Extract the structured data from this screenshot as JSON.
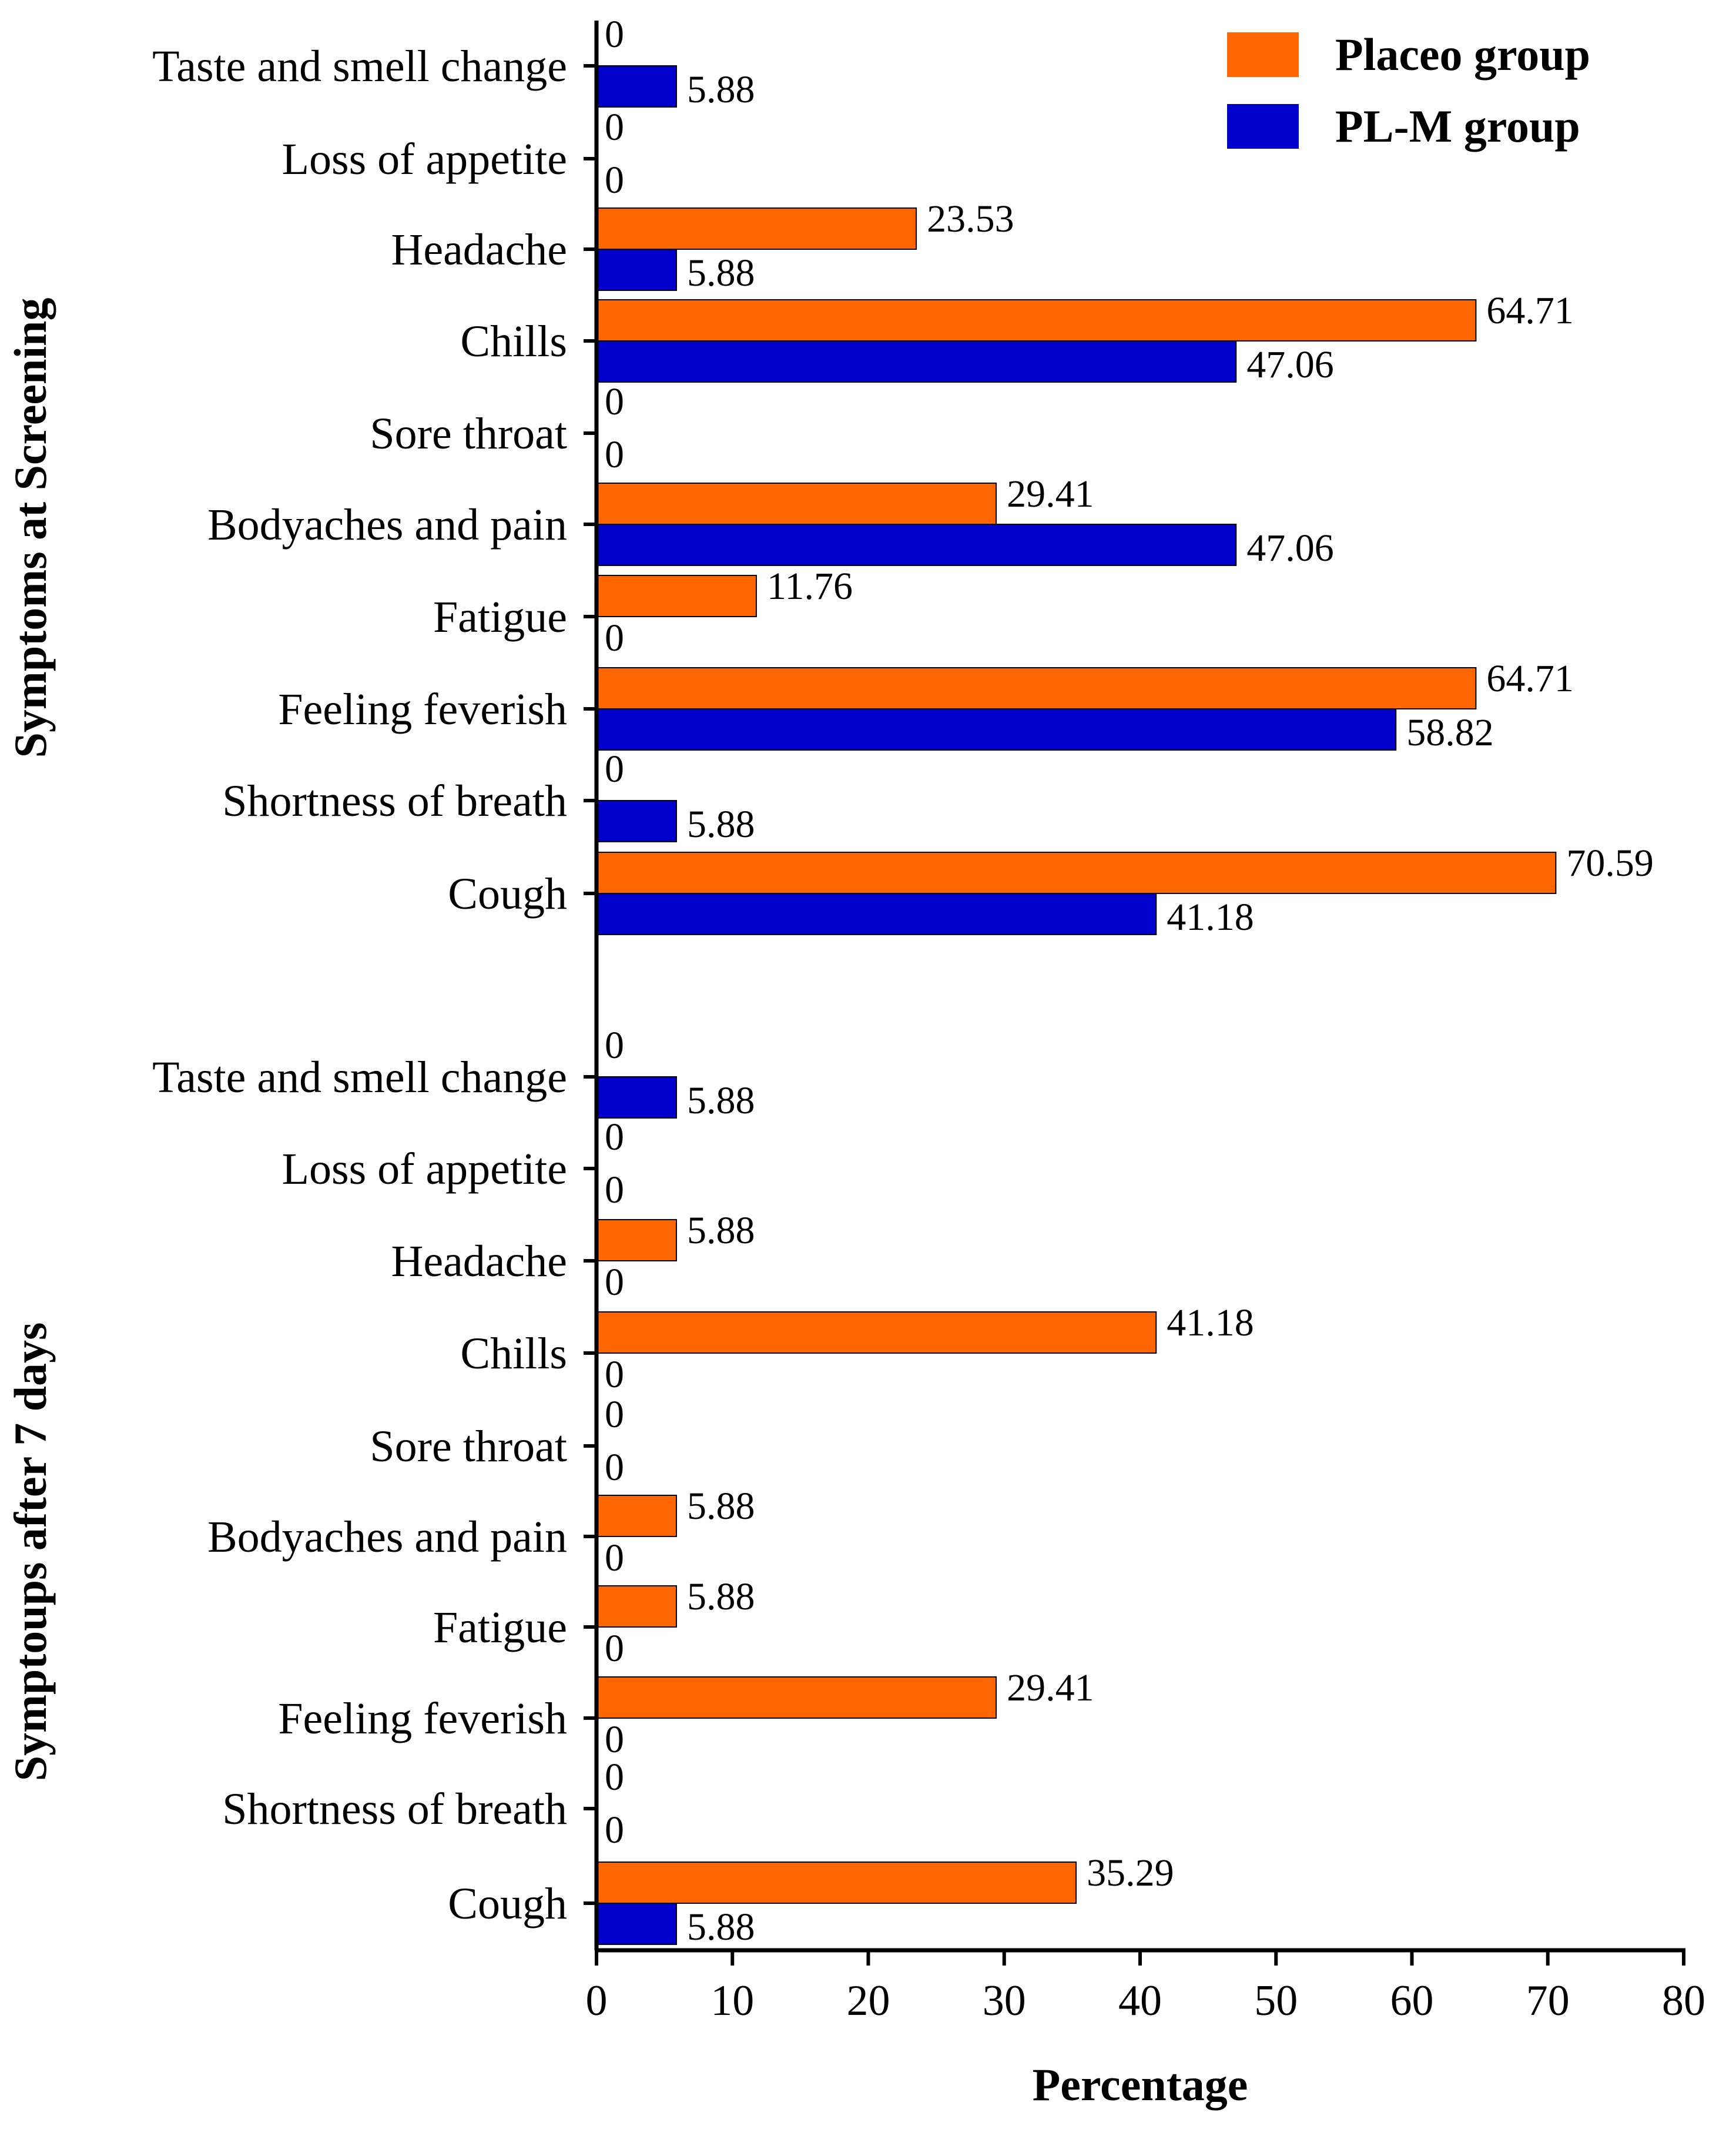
{
  "chart_data": {
    "type": "bar",
    "orientation": "horizontal",
    "xlabel": "Percentage",
    "xlim": [
      0,
      80
    ],
    "xticks": [
      0,
      10,
      20,
      30,
      40,
      50,
      60,
      70,
      80
    ],
    "grid": false,
    "legend_position": "top-right",
    "colors": {
      "placebo": "#FF6600",
      "plm": "#0000CC"
    },
    "legend": [
      {
        "name": "Placeo group",
        "key": "placebo"
      },
      {
        "name": "PL-M group",
        "key": "plm"
      }
    ],
    "groups": [
      {
        "ylabel": "Symptoms at Screening",
        "categories": [
          "Taste and smell change",
          "Loss of appetite",
          "Headache",
          "Chills",
          "Sore throat",
          "Bodyaches and pain",
          "Fatigue",
          "Feeling feverish",
          "Shortness of breath",
          "Cough"
        ],
        "series": [
          {
            "name": "Placeo group",
            "key": "placebo",
            "values": [
              0,
              0,
              23.53,
              64.71,
              0,
              29.41,
              11.76,
              64.71,
              0,
              70.59
            ],
            "labels": [
              "0",
              "0",
              "23.53",
              "64.71",
              "0",
              "29.41",
              "11.76",
              "64.71",
              "0",
              "70.59"
            ]
          },
          {
            "name": "PL-M group",
            "key": "plm",
            "values": [
              5.88,
              0,
              5.88,
              47.06,
              0,
              47.06,
              0,
              58.82,
              5.88,
              41.18
            ],
            "labels": [
              "5.88",
              "0",
              "5.88",
              "47.06",
              "0",
              "47.06",
              "0",
              "58.82",
              "5.88",
              "41.18"
            ]
          }
        ]
      },
      {
        "ylabel": "Symptoups after 7 days",
        "categories": [
          "Taste and smell change",
          "Loss of appetite",
          "Headache",
          "Chills",
          "Sore throat",
          "Bodyaches and pain",
          "Fatigue",
          "Feeling feverish",
          "Shortness of breath",
          "Cough"
        ],
        "series": [
          {
            "name": "Placeo group",
            "key": "placebo",
            "values": [
              0,
              0,
              5.88,
              41.18,
              0,
              5.88,
              5.88,
              29.41,
              0,
              35.29
            ],
            "labels": [
              "0",
              "0",
              "5.88",
              "41.18",
              "0",
              "5.88",
              "5.88",
              "29.41",
              "0",
              "35.29"
            ]
          },
          {
            "name": "PL-M group",
            "key": "plm",
            "values": [
              5.88,
              0,
              0,
              0,
              0,
              0,
              0,
              0,
              0,
              5.88
            ],
            "labels": [
              "5.88",
              "0",
              "0",
              "0",
              "0",
              "0",
              "0",
              "0",
              "0",
              "5.88"
            ]
          }
        ]
      }
    ]
  }
}
